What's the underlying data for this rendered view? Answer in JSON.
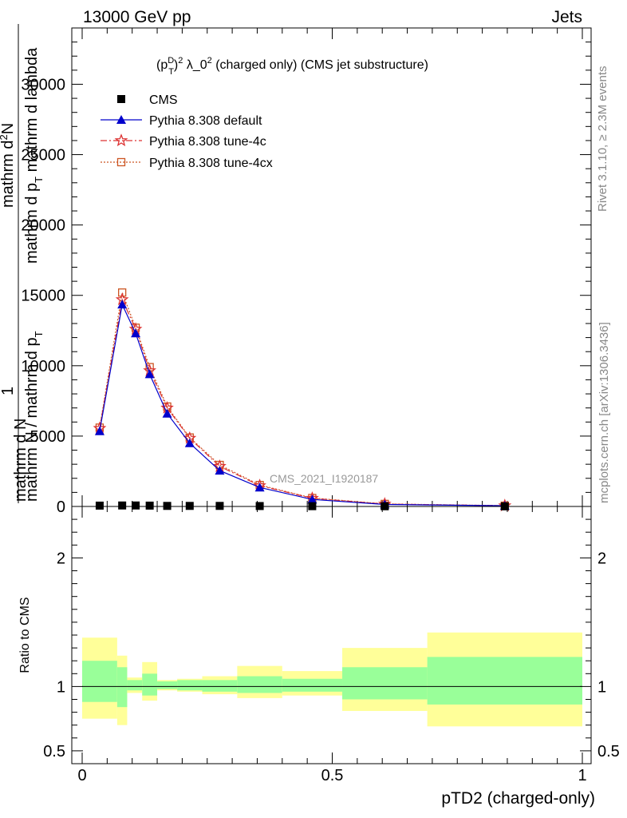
{
  "header": {
    "energy_label": "13000 GeV pp",
    "process_label": "Jets",
    "rivet_label": "Rivet 3.1.10, ≥ 2.3M events",
    "mcplots_label": "mcplots.cern.ch [arXiv:1306.3436]",
    "analysis_label": "CMS_2021_I1920187"
  },
  "upper_panel": {
    "title_prefix": "(p",
    "title_sup": "D",
    "title_sub": "T",
    "title_mid": ")",
    "title_sup2": "2",
    "title_rest": " λ_0",
    "title_sup3": "2",
    "title_end": " (charged only) (CMS jet substructure)",
    "ylabel_numerator_prefix": "1",
    "ylabel_line_a": "mathrm d",
    "ylabel_line_a_sup": "2",
    "ylabel_line_a_end": "N",
    "ylabel_line_b": "mathrm d p",
    "ylabel_line_b_sub": "T",
    "ylabel_line_b_end": " mathrm d lambda",
    "ylabel_denominator": "mathrm N / mathrm d p",
    "ylabel_denominator_sub": "T",
    "ylabel_numerator": "mathrm d N"
  },
  "lower_panel": {
    "ylabel": "Ratio to CMS",
    "xlabel": "pTD2 (charged-only)"
  },
  "legend": [
    {
      "label": "CMS",
      "marker": "square",
      "color": "#000000",
      "line": "none"
    },
    {
      "label": "Pythia 8.308 default",
      "marker": "triangle",
      "color": "#0000cc",
      "line": "solid"
    },
    {
      "label": "Pythia 8.308 tune-4c",
      "marker": "star",
      "color": "#dd3333",
      "line": "dashdot"
    },
    {
      "label": "Pythia 8.308 tune-4cx",
      "marker": "open-square",
      "color": "#cc5522",
      "line": "dotted"
    }
  ],
  "chart_data": [
    {
      "type": "line",
      "panel": "main",
      "xlim": [
        0,
        1
      ],
      "ylim": [
        0,
        34000
      ],
      "yticks": [
        0,
        5000,
        10000,
        15000,
        20000,
        25000,
        30000
      ],
      "ytick_labels": [
        "0",
        "5000",
        "10000",
        "15000",
        "20000",
        "25000",
        "30000"
      ],
      "x": [
        0.035,
        0.08,
        0.107,
        0.135,
        0.17,
        0.215,
        0.275,
        0.355,
        0.46,
        0.605,
        0.845
      ],
      "series": [
        {
          "name": "CMS",
          "values": [
            60,
            70,
            70,
            60,
            40,
            40,
            40,
            30,
            20,
            15,
            8
          ]
        },
        {
          "name": "Pythia 8.308 default",
          "values": [
            5350,
            14350,
            12300,
            9400,
            6600,
            4500,
            2550,
            1350,
            500,
            140,
            50
          ]
        },
        {
          "name": "Pythia 8.308 tune-4c",
          "values": [
            5550,
            14700,
            12600,
            9650,
            7000,
            4850,
            2850,
            1480,
            580,
            170,
            55
          ]
        },
        {
          "name": "Pythia 8.308 tune-4cx",
          "values": [
            5600,
            15200,
            12700,
            9900,
            7100,
            4900,
            2950,
            1520,
            600,
            180,
            55
          ]
        }
      ]
    },
    {
      "type": "area",
      "panel": "ratio",
      "xlim": [
        0,
        1
      ],
      "ylim": [
        0.4,
        2.4
      ],
      "yticks": [
        0.5,
        1,
        2
      ],
      "ytick_labels": [
        "0.5",
        "1",
        "2"
      ],
      "xticks": [
        0,
        0.5,
        1
      ],
      "xtick_labels": [
        "0",
        "0.5",
        "1"
      ],
      "bins": [
        {
          "lo": 0.0,
          "hi": 0.07,
          "inner": [
            0.88,
            1.2
          ],
          "outer": [
            0.75,
            1.38
          ]
        },
        {
          "lo": 0.07,
          "hi": 0.09,
          "inner": [
            0.84,
            1.15
          ],
          "outer": [
            0.7,
            1.24
          ]
        },
        {
          "lo": 0.09,
          "hi": 0.12,
          "inner": [
            0.97,
            1.05
          ],
          "outer": [
            0.95,
            1.07
          ]
        },
        {
          "lo": 0.12,
          "hi": 0.15,
          "inner": [
            0.93,
            1.1
          ],
          "outer": [
            0.89,
            1.19
          ]
        },
        {
          "lo": 0.15,
          "hi": 0.19,
          "inner": [
            0.98,
            1.04
          ],
          "outer": [
            0.97,
            1.05
          ]
        },
        {
          "lo": 0.19,
          "hi": 0.24,
          "inner": [
            0.97,
            1.05
          ],
          "outer": [
            0.96,
            1.06
          ]
        },
        {
          "lo": 0.24,
          "hi": 0.31,
          "inner": [
            0.96,
            1.05
          ],
          "outer": [
            0.94,
            1.08
          ]
        },
        {
          "lo": 0.31,
          "hi": 0.4,
          "inner": [
            0.95,
            1.08
          ],
          "outer": [
            0.91,
            1.16
          ]
        },
        {
          "lo": 0.4,
          "hi": 0.52,
          "inner": [
            0.96,
            1.06
          ],
          "outer": [
            0.93,
            1.12
          ]
        },
        {
          "lo": 0.52,
          "hi": 0.69,
          "inner": [
            0.9,
            1.15
          ],
          "outer": [
            0.81,
            1.3
          ]
        },
        {
          "lo": 0.69,
          "hi": 1.0,
          "inner": [
            0.86,
            1.23
          ],
          "outer": [
            0.69,
            1.42
          ]
        }
      ]
    }
  ],
  "colors": {
    "green_band": "#99ff99",
    "yellow_band": "#ffff99",
    "axis": "#000000",
    "side_text": "#888888"
  }
}
